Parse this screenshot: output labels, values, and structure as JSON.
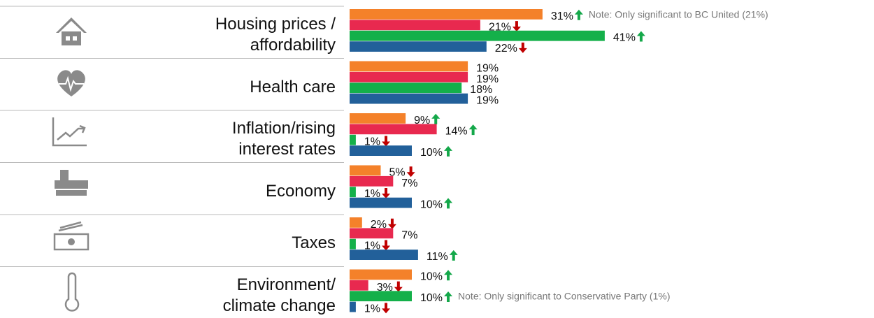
{
  "chart_data": {
    "type": "bar",
    "orientation": "horizontal",
    "categories": [
      "Housing prices / affordability",
      "Health care",
      "Inflation/rising interest rates",
      "Economy",
      "Taxes",
      "Environment/ climate change"
    ],
    "series": [
      {
        "color": "#f4812a",
        "values": [
          31,
          19,
          9,
          5,
          2,
          10
        ],
        "value_labels": [
          "31%",
          "19%",
          "9%",
          "5%",
          "2%",
          "10%"
        ],
        "arrows": [
          "up",
          null,
          "up",
          "down",
          "down",
          "up"
        ]
      },
      {
        "color": "#e8294f",
        "values": [
          21,
          19,
          14,
          7,
          7,
          3
        ],
        "value_labels": [
          "21%",
          "19%",
          "14%",
          "7%",
          "7%",
          "3%"
        ],
        "arrows": [
          "down",
          null,
          "up",
          null,
          null,
          "down"
        ]
      },
      {
        "color": "#14b04a",
        "values": [
          41,
          18,
          1,
          1,
          1,
          10
        ],
        "value_labels": [
          "41%",
          "18%",
          "1%",
          "1%",
          "1%",
          "10%"
        ],
        "arrows": [
          "up",
          null,
          "down",
          "down",
          "down",
          "up"
        ]
      },
      {
        "color": "#22609a",
        "values": [
          22,
          19,
          10,
          10,
          11,
          1
        ],
        "value_labels": [
          "22%",
          "19%",
          "10%",
          "10%",
          "11%",
          "1%"
        ],
        "arrows": [
          "down",
          null,
          "up",
          "up",
          "up",
          "down"
        ]
      }
    ],
    "arrow_colors": {
      "up": "#14a84a",
      "down": "#c00000"
    },
    "annotations": [
      {
        "text": "Note: Only significant to BC United (21%)",
        "category": 0,
        "series": 0
      },
      {
        "text": "Note: Only significant to Conservative Party (1%)",
        "category": 5,
        "series": 2
      }
    ]
  }
}
